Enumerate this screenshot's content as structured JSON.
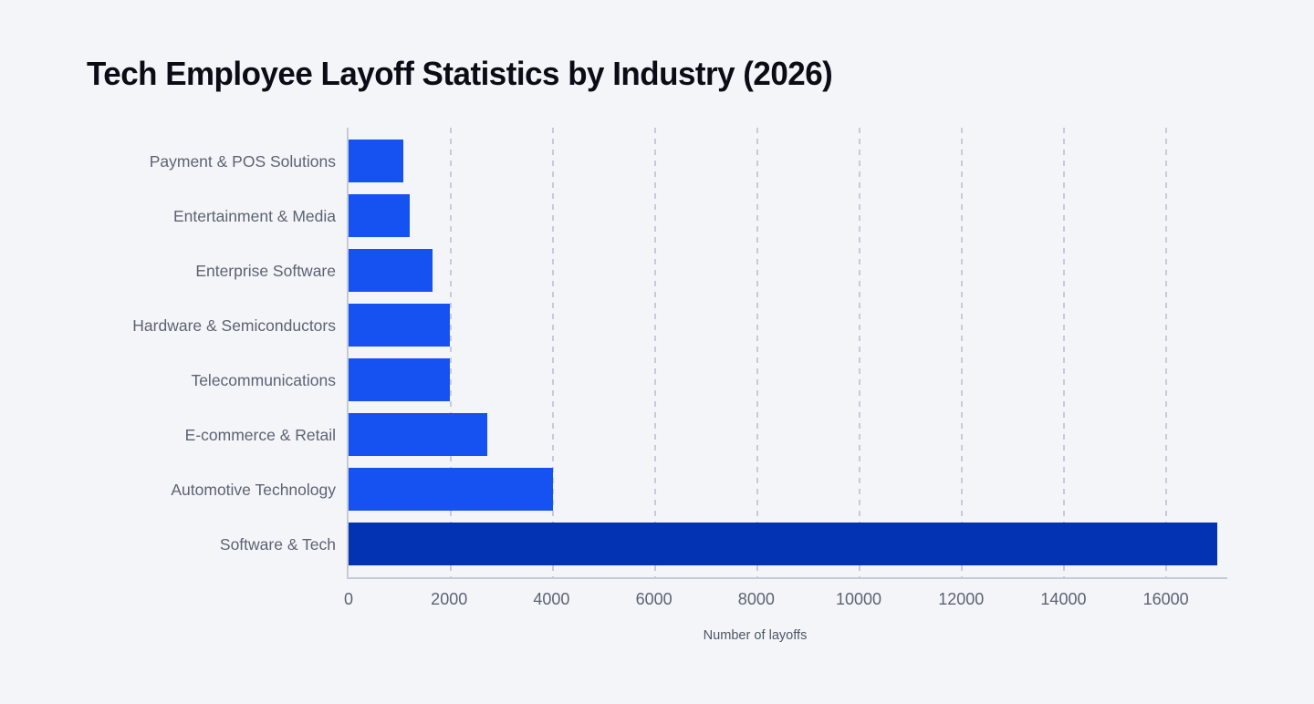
{
  "chart_data": {
    "type": "bar",
    "orientation": "horizontal",
    "title": "Tech Employee Layoff Statistics by Industry (2026)",
    "categories": [
      "Payment & POS Solutions",
      "Entertainment & Media",
      "Enterprise Software",
      "Hardware & Semiconductors",
      "Telecommunications",
      "E-commerce & Retail",
      "Automotive Technology",
      "Software & Tech"
    ],
    "values": [
      1080,
      1190,
      1650,
      1990,
      1980,
      2710,
      4000,
      17000
    ],
    "xlabel": "Number of layoffs",
    "ylabel": "",
    "xlim": [
      0,
      17200
    ],
    "xticks": [
      0,
      2000,
      4000,
      6000,
      8000,
      10000,
      12000,
      14000,
      16000
    ],
    "grid": "vertical-dashed",
    "legend": "none",
    "bar_color": "#1652f2",
    "highlight_bar_color": "#0333b3",
    "highlight_category": "Software & Tech",
    "colors": [
      "#1652f2",
      "#1652f2",
      "#1652f2",
      "#1652f2",
      "#1652f2",
      "#1652f2",
      "#1652f2",
      "#0333b3"
    ]
  },
  "style": {
    "background": "#f4f5f9",
    "title_color": "#0b0c15",
    "label_color": "#5c6372",
    "axis_color": "#c4cad6",
    "gridline_color": "#c7cbd8"
  }
}
